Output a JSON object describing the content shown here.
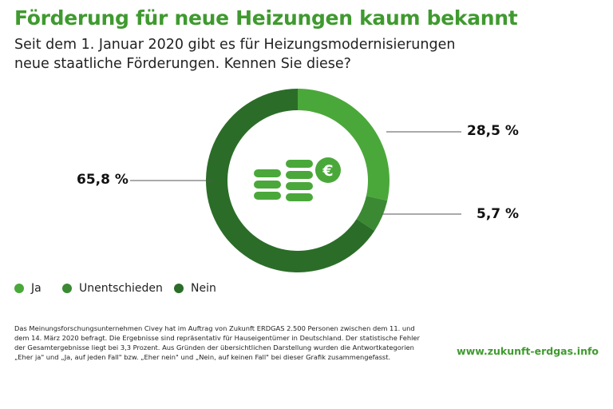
{
  "title": "Förderung für neue Heizungen kaum bekannt",
  "subtitle": "Seit dem 1. Januar 2020 gibt es für Heizungsmodernisierungen neue staatliche Förderungen. Kennen Sie diese?",
  "chart_data": {
    "type": "pie",
    "variant": "donut",
    "title": "Förderung für neue Heizungen kaum bekannt",
    "categories": [
      "Ja",
      "Unentschieden",
      "Nein"
    ],
    "values": [
      28.5,
      5.7,
      65.8
    ],
    "labels": [
      "28,5 %",
      "5,7 %",
      "65,8 %"
    ],
    "colors": [
      "#4aa83a",
      "#3b8a33",
      "#2b6d28"
    ],
    "legend": "bottom-left"
  },
  "icon": "coins-euro-icon",
  "footnote": "Das Meinungsforschungsunternehmen Civey hat im Auftrag von Zukunft ERDGAS 2.500 Personen zwischen dem 11. und dem 14. März 2020 befragt. Die Ergebnisse sind repräsentativ für Hauseigentümer in Deutschland. Der statistische Fehler der Gesamtergebnisse liegt bei 3,3 Prozent. Aus Gründen der übersichtlichen Darstellung wurden die Antwortkategorien „Eher ja\" und „Ja, auf jeden Fall\" bzw. „Eher nein\" und „Nein, auf keinen Fall\" bei dieser Grafik zusammengefasst.",
  "url": "www.zukunft-erdgas.info"
}
